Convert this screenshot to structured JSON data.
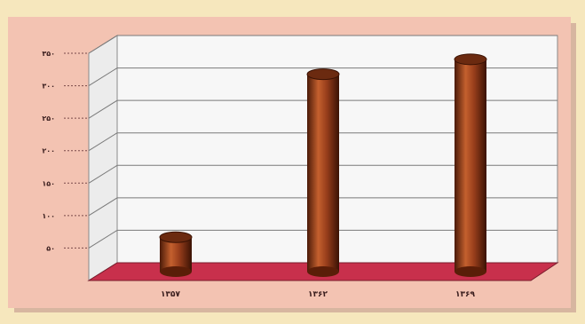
{
  "chart_data": {
    "type": "bar",
    "categories": [
      "۱۳۵۷",
      "۱۳۶۲",
      "۱۳۶۹"
    ],
    "values": [
      53,
      304,
      327
    ],
    "yticks": [
      "۵۰",
      "۱۰۰",
      "۱۵۰",
      "۲۰۰",
      "۲۵۰",
      "۳۰۰",
      "۳۵۰"
    ],
    "ylim": [
      0,
      350
    ],
    "grid": true,
    "colors": {
      "bar": "#9a3f1c",
      "floor": "#c8304c",
      "panel": "#f4f4f4",
      "background": "#f3c3b2"
    }
  }
}
